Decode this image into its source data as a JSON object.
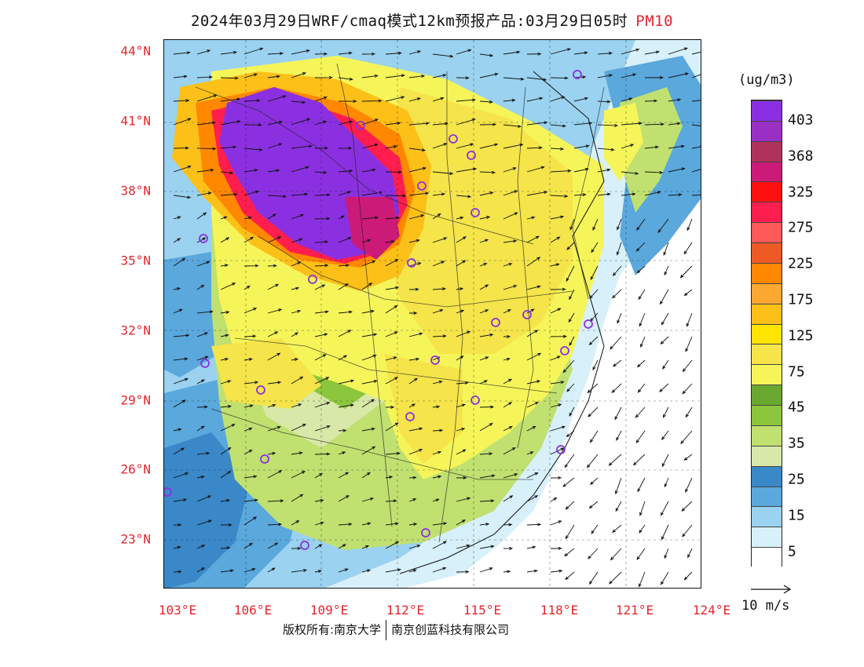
{
  "header": {
    "title": "2024年03月29日WRF/cmaq模式12km预报产品:03月29日05时",
    "pollutant": "PM10"
  },
  "map": {
    "lat_labels": [
      "44°N",
      "41°N",
      "38°N",
      "35°N",
      "32°N",
      "29°N",
      "26°N",
      "23°N"
    ],
    "lon_labels": [
      "103°E",
      "106°E",
      "109°E",
      "112°E",
      "115°E",
      "118°E",
      "121°E",
      "124°E"
    ],
    "lat_range": [
      21,
      44.5
    ],
    "lon_range": [
      102.8,
      124
    ],
    "station_marker": "circle-icon",
    "wind_vector_icon": "arrow-icon"
  },
  "legend": {
    "unit": "(ug/m3)",
    "labels": [
      "403",
      "368",
      "325",
      "275",
      "225",
      "175",
      "125",
      "75",
      "45",
      "35",
      "25",
      "15",
      "5"
    ],
    "colors": [
      "#8b30e0",
      "#9a2fc4",
      "#b0325c",
      "#cc1a78",
      "#ff1010",
      "#ff1e4e",
      "#ff5a5a",
      "#ee5a25",
      "#ff8800",
      "#fca830",
      "#fcc018",
      "#ffe400",
      "#f5e44a",
      "#f5f55a",
      "#6aa830",
      "#8cc63c",
      "#c0e070",
      "#d8e8a8",
      "#3a88c8",
      "#5aa8dc",
      "#9ad2f0",
      "#d8f0fa",
      "#ffffff"
    ],
    "wind_reference": "10 m/s"
  },
  "footer": {
    "copyright_left": "版权所有:南京大学",
    "copyright_right": "南京创蓝科技有限公司"
  }
}
